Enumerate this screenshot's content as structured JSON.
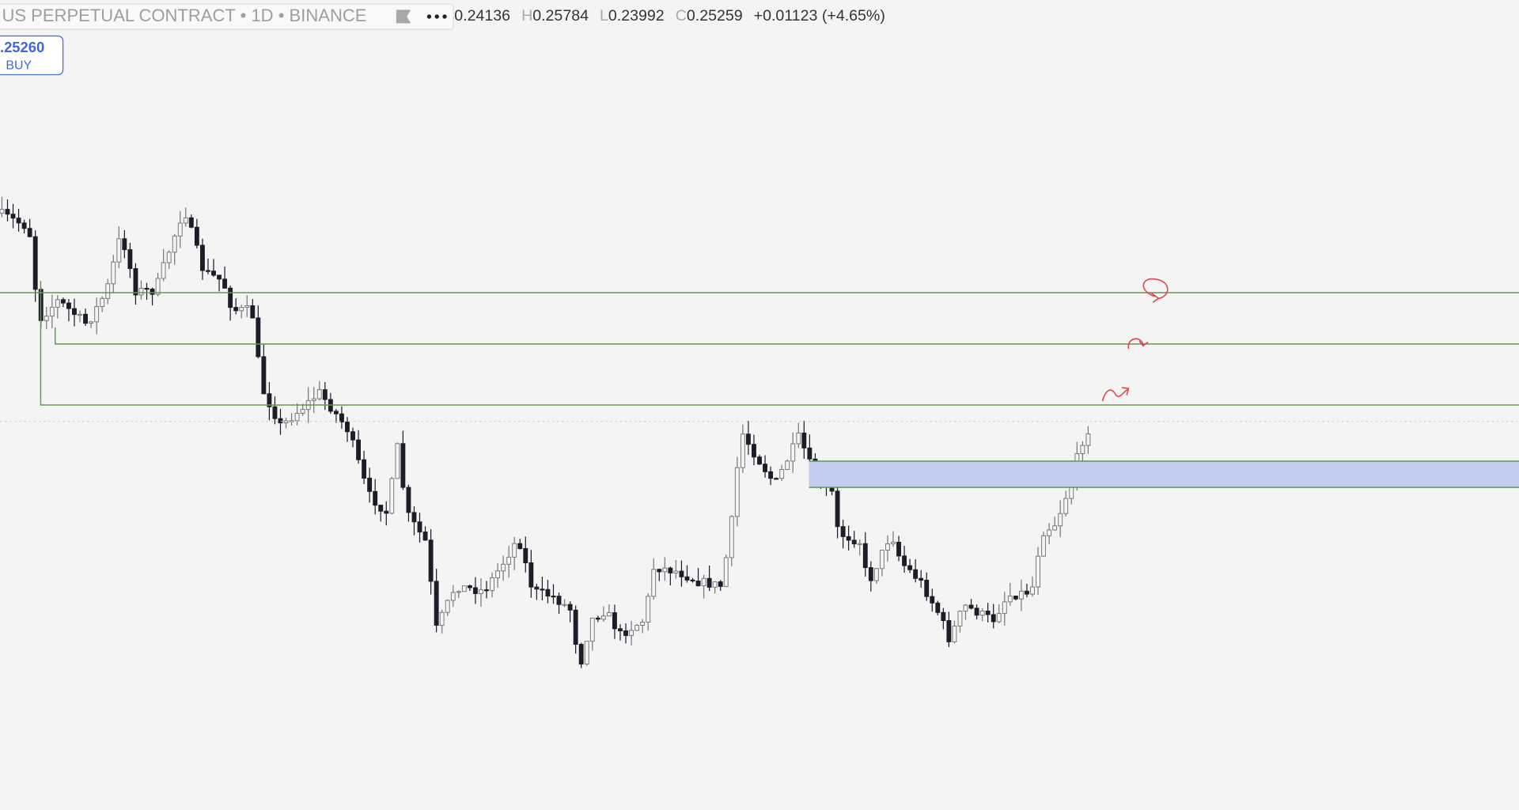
{
  "header": {
    "title": "US PERPETUAL CONTRACT • 1D • BINANCE"
  },
  "ohlc": {
    "open": "0.24136",
    "high_label": "H",
    "high": "0.25784",
    "low_label": "L",
    "low": "0.23992",
    "close_label": "C",
    "close": "0.25259",
    "change": "+0.01123 (+4.65%)"
  },
  "order_button": {
    "price": ".25260",
    "side": "BUY"
  }
}
